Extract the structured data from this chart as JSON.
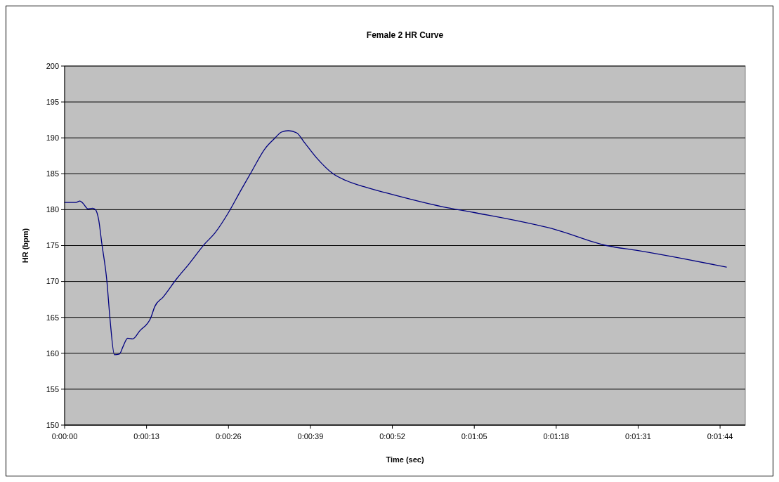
{
  "chart_data": {
    "type": "line",
    "title": "Female 2 HR Curve",
    "xlabel": "Time (sec)",
    "ylabel": "HR (bpm)",
    "xlim": [
      0,
      108
    ],
    "xticks": [
      {
        "value": 0,
        "label": "0:00:00"
      },
      {
        "value": 13,
        "label": "0:00:13"
      },
      {
        "value": 26,
        "label": "0:00:26"
      },
      {
        "value": 39,
        "label": "0:00:39"
      },
      {
        "value": 52,
        "label": "0:00:52"
      },
      {
        "value": 65,
        "label": "0:01:05"
      },
      {
        "value": 78,
        "label": "0:01:18"
      },
      {
        "value": 91,
        "label": "0:01:31"
      },
      {
        "value": 104,
        "label": "0:01:44"
      }
    ],
    "ylim": [
      150,
      200
    ],
    "yticks": [
      150,
      155,
      160,
      165,
      170,
      175,
      180,
      185,
      190,
      195,
      200
    ],
    "grid": "y",
    "marker": "none",
    "line_style": "solid",
    "series": [
      {
        "color": "#000080",
        "x": [
          0,
          1.8,
          2.4,
          2.9,
          3.7,
          4.4,
          4.9,
          5.4,
          5.9,
          6.7,
          7.2,
          7.9,
          8.7,
          9.3,
          10,
          10.8,
          11.9,
          13.7,
          14.3,
          15.6,
          17.8,
          19.7,
          22.3,
          23.8,
          26,
          27.9,
          29.6,
          31.8,
          33.3,
          34.4,
          35.5,
          36.8,
          38.1,
          40,
          42.6,
          44.8,
          47.5,
          51.2,
          60,
          65,
          78,
          86,
          91,
          98,
          105
        ],
        "values": [
          181,
          181,
          181.2,
          180.9,
          180.1,
          180.2,
          180,
          178.6,
          175.3,
          170.1,
          164.8,
          159.8,
          159.9,
          161,
          162.1,
          162,
          163.1,
          165,
          166.5,
          167.8,
          170.4,
          172.4,
          175.3,
          176.7,
          179.6,
          182.6,
          185.2,
          188.5,
          189.9,
          190.8,
          191,
          190.7,
          189.3,
          187.2,
          185,
          184,
          183.2,
          182.3,
          180.4,
          179.6,
          177.2,
          175,
          174.3,
          173.2,
          172
        ]
      }
    ]
  }
}
